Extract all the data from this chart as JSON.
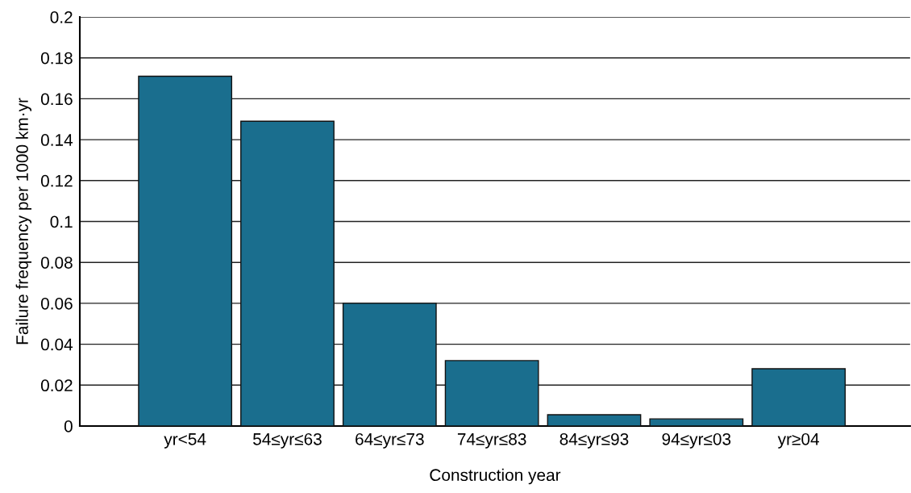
{
  "chart_data": {
    "type": "bar",
    "xlabel": "Construction year",
    "ylabel": "Failure frequency per 1000 km·yr",
    "categories": [
      "yr<54",
      "54≤yr≤63",
      "64≤yr≤73",
      "74≤yr≤83",
      "84≤yr≤93",
      "94≤yr≤03",
      "yr≥04"
    ],
    "values": [
      0.171,
      0.149,
      0.06,
      0.032,
      0.0055,
      0.0035,
      0.028
    ],
    "color": "#1a6e8e",
    "ylim": [
      0,
      0.2
    ],
    "yticks": [
      0,
      0.02,
      0.04,
      0.06,
      0.08,
      0.1,
      0.12,
      0.14,
      0.16,
      0.18,
      0.2
    ],
    "grid": "y"
  }
}
